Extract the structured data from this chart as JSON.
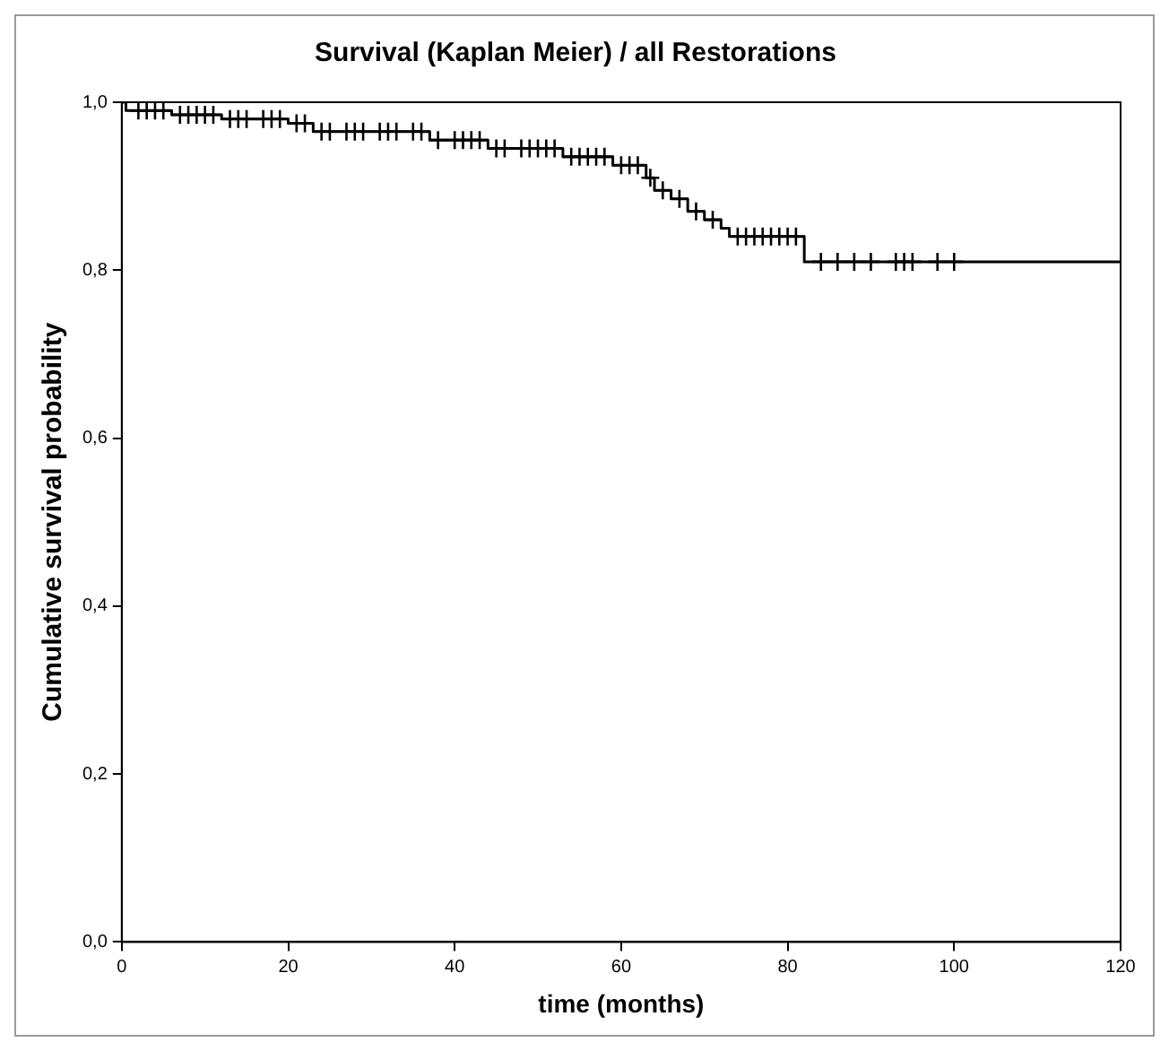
{
  "chart_data": {
    "type": "line",
    "title": "Survival (Kaplan Meier) / all Restorations",
    "xlabel": "time (months)",
    "ylabel": "Cumulative survival probability",
    "xlim": [
      0,
      120
    ],
    "xticks": [
      0,
      20,
      40,
      60,
      80,
      100,
      120
    ],
    "ylim": [
      0,
      1
    ],
    "yticks": [
      {
        "value": 0,
        "label": "0,0"
      },
      {
        "value": 0.2,
        "label": "0,2"
      },
      {
        "value": 0.4,
        "label": "0,4"
      },
      {
        "value": 0.6,
        "label": "0,6"
      },
      {
        "value": 0.8,
        "label": "0,8"
      },
      {
        "value": 1,
        "label": "1,0"
      }
    ],
    "grid": false,
    "legend": false,
    "series": [
      {
        "type": "line",
        "color": "#000000",
        "marker": "none",
        "x": [
          0,
          0.5,
          0.5,
          6,
          6,
          12,
          12,
          20,
          20,
          23,
          23,
          37,
          37,
          44,
          44,
          53,
          53,
          59,
          59,
          63,
          63,
          64,
          64,
          66,
          66,
          68,
          68,
          70,
          70,
          72,
          72,
          73,
          73,
          82,
          82,
          120
        ],
        "values": [
          1.0,
          1.0,
          0.99,
          0.99,
          0.985,
          0.985,
          0.98,
          0.98,
          0.975,
          0.975,
          0.965,
          0.965,
          0.955,
          0.955,
          0.945,
          0.945,
          0.935,
          0.935,
          0.925,
          0.925,
          0.91,
          0.91,
          0.895,
          0.895,
          0.885,
          0.885,
          0.87,
          0.87,
          0.86,
          0.86,
          0.85,
          0.85,
          0.84,
          0.84,
          0.81,
          0.81
        ]
      },
      {
        "type": "scatter",
        "color": "#000000",
        "marker": "cross",
        "x": [
          2,
          3,
          4,
          5,
          7,
          8,
          9,
          10,
          11,
          13,
          14,
          15,
          17,
          18,
          19,
          21,
          22,
          24,
          25,
          27,
          28,
          29,
          31,
          32,
          33,
          35,
          36,
          38,
          40,
          41,
          42,
          43,
          45,
          46,
          48,
          49,
          50,
          51,
          52,
          54,
          55,
          56,
          57,
          58,
          60,
          61,
          62,
          63.5,
          65,
          67,
          69,
          71,
          74,
          75,
          76,
          77,
          78,
          79,
          80,
          81,
          84,
          86,
          88,
          90,
          93,
          94,
          95,
          98,
          100
        ],
        "values": [
          0.99,
          0.99,
          0.99,
          0.99,
          0.985,
          0.985,
          0.985,
          0.985,
          0.985,
          0.98,
          0.98,
          0.98,
          0.98,
          0.98,
          0.98,
          0.975,
          0.975,
          0.965,
          0.965,
          0.965,
          0.965,
          0.965,
          0.965,
          0.965,
          0.965,
          0.965,
          0.965,
          0.955,
          0.955,
          0.955,
          0.955,
          0.955,
          0.945,
          0.945,
          0.945,
          0.945,
          0.945,
          0.945,
          0.945,
          0.935,
          0.935,
          0.935,
          0.935,
          0.935,
          0.925,
          0.925,
          0.925,
          0.91,
          0.895,
          0.885,
          0.87,
          0.86,
          0.84,
          0.84,
          0.84,
          0.84,
          0.84,
          0.84,
          0.84,
          0.84,
          0.81,
          0.81,
          0.81,
          0.81,
          0.81,
          0.81,
          0.81,
          0.81,
          0.81
        ]
      }
    ]
  }
}
